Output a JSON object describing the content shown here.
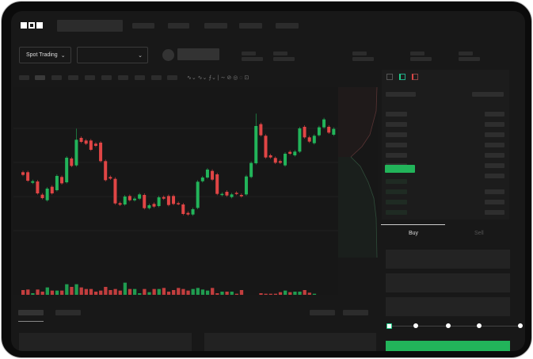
{
  "brand": {
    "logo": "OKX"
  },
  "toolbar": {
    "market_type": "Spot Trading",
    "pair_dropdown": ""
  },
  "trade": {
    "tabs": [
      "Buy",
      "Sell"
    ],
    "active_tab": "Buy",
    "leverage_slider_fraction": 0
  },
  "colors": {
    "up": "#22b45a",
    "down": "#e04545",
    "background": "#181818",
    "accent": "#22b45a"
  },
  "icons": [
    "chevron-down-icon",
    "indicator-icon",
    "draw-line-icon",
    "orderbook-both-icon",
    "orderbook-buy-icon",
    "orderbook-sell-icon"
  ],
  "chart_data": {
    "type": "candlestick",
    "candles": [
      {
        "o": 250,
        "c": 240
      },
      {
        "o": 250,
        "c": 218
      },
      {
        "o": 210,
        "c": 216
      },
      {
        "o": 215,
        "c": 170
      },
      {
        "o": 165,
        "c": 152
      },
      {
        "o": 144,
        "c": 188
      },
      {
        "o": 195,
        "c": 170
      },
      {
        "o": 182,
        "c": 236
      },
      {
        "o": 232,
        "c": 208
      },
      {
        "o": 212,
        "c": 305
      },
      {
        "o": 302,
        "c": 274
      },
      {
        "o": 276,
        "c": 373,
        "h": 415
      },
      {
        "o": 380,
        "c": 365
      },
      {
        "o": 370,
        "c": 358
      },
      {
        "o": 370,
        "c": 335
      },
      {
        "o": 358,
        "c": 350
      },
      {
        "o": 362,
        "c": 292
      },
      {
        "o": 292,
        "c": 220
      },
      {
        "o": 232,
        "c": 226
      },
      {
        "o": 225,
        "c": 132
      },
      {
        "o": 133,
        "c": 127
      },
      {
        "o": 128,
        "c": 158
      },
      {
        "o": 160,
        "c": 144
      },
      {
        "o": 144,
        "c": 150
      },
      {
        "o": 150,
        "c": 166
      },
      {
        "o": 164,
        "c": 114
      },
      {
        "o": 114,
        "c": 125
      },
      {
        "o": 130,
        "c": 120
      },
      {
        "o": 122,
        "c": 155
      },
      {
        "o": 156,
        "c": 150
      },
      {
        "o": 160,
        "c": 126
      },
      {
        "o": 160,
        "c": 130
      },
      {
        "o": 133,
        "c": 130
      },
      {
        "o": 128,
        "c": 92
      },
      {
        "o": 96,
        "c": 90
      },
      {
        "o": 90,
        "c": 110
      },
      {
        "o": 115,
        "c": 214
      },
      {
        "o": 216,
        "c": 230
      },
      {
        "o": 230,
        "c": 260
      },
      {
        "o": 255,
        "c": 222
      },
      {
        "o": 242,
        "c": 168
      },
      {
        "o": 164,
        "c": 168
      },
      {
        "o": 176,
        "c": 162
      },
      {
        "o": 156,
        "c": 166
      },
      {
        "o": 172,
        "c": 168
      },
      {
        "o": 164,
        "c": 159
      },
      {
        "o": 166,
        "c": 234
      },
      {
        "o": 232,
        "c": 285
      },
      {
        "o": 284,
        "c": 425,
        "h": 472
      },
      {
        "o": 432,
        "c": 390
      },
      {
        "o": 388,
        "c": 306
      },
      {
        "o": 314,
        "c": 306
      },
      {
        "o": 304,
        "c": 286
      },
      {
        "o": 292,
        "c": 286
      },
      {
        "o": 276,
        "c": 320
      },
      {
        "o": 327,
        "c": 320
      },
      {
        "o": 314,
        "c": 328
      },
      {
        "o": 328,
        "c": 416
      },
      {
        "o": 422,
        "c": 382
      },
      {
        "o": 382,
        "c": 366
      },
      {
        "o": 360,
        "c": 388
      },
      {
        "o": 390,
        "c": 420
      },
      {
        "o": 420,
        "c": 450
      },
      {
        "o": 422,
        "c": 400
      },
      {
        "o": 392,
        "c": 414
      }
    ],
    "volume": [
      36,
      38,
      24,
      38,
      30,
      46,
      34,
      34,
      34,
      58,
      48,
      58,
      46,
      40,
      40,
      30,
      34,
      48,
      36,
      40,
      34,
      64,
      40,
      40,
      24,
      40,
      28,
      40,
      40,
      44,
      30,
      36,
      44,
      40,
      34,
      40,
      44,
      38,
      34,
      44,
      24,
      30,
      30,
      30,
      22,
      36,
      10,
      10,
      14,
      24,
      22,
      22,
      22,
      28,
      34,
      28,
      30,
      30,
      36,
      26,
      22,
      14,
      10,
      16,
      14
    ]
  }
}
